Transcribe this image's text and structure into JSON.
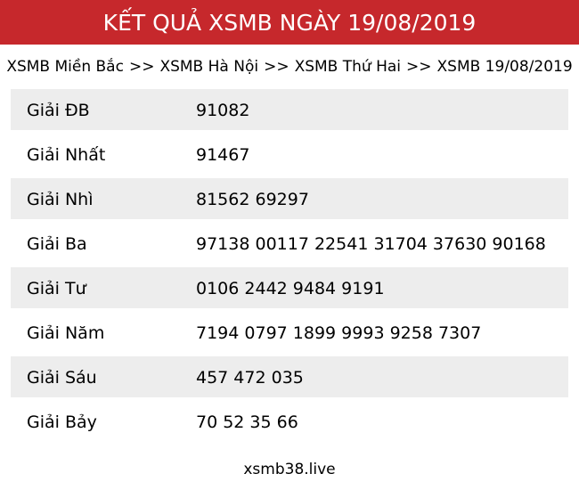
{
  "header": {
    "title": "KẾT QUẢ XSMB NGÀY 19/08/2019",
    "background_color": "#C6282C",
    "text_color": "#FFFFFF"
  },
  "breadcrumb": {
    "items": [
      "XSMB Miền Bắc",
      "XSMB Hà Nội",
      "XSMB Thứ Hai",
      "XSMB 19/08/2019"
    ],
    "separator": ">>"
  },
  "results_table": {
    "shaded_row_color": "#EDEDED",
    "rows": [
      {
        "label": "Giải ĐB",
        "numbers": "91082"
      },
      {
        "label": "Giải Nhất",
        "numbers": "91467"
      },
      {
        "label": "Giải Nhì",
        "numbers": "81562 69297"
      },
      {
        "label": "Giải Ba",
        "numbers": "97138 00117 22541 31704 37630 90168"
      },
      {
        "label": "Giải Tư",
        "numbers": "0106 2442 9484 9191"
      },
      {
        "label": "Giải Năm",
        "numbers": "7194 0797 1899 9993 9258 7307"
      },
      {
        "label": "Giải Sáu",
        "numbers": "457 472 035"
      },
      {
        "label": "Giải Bảy",
        "numbers": "70 52 35 66"
      }
    ]
  },
  "footer": {
    "site": "xsmb38.live"
  }
}
